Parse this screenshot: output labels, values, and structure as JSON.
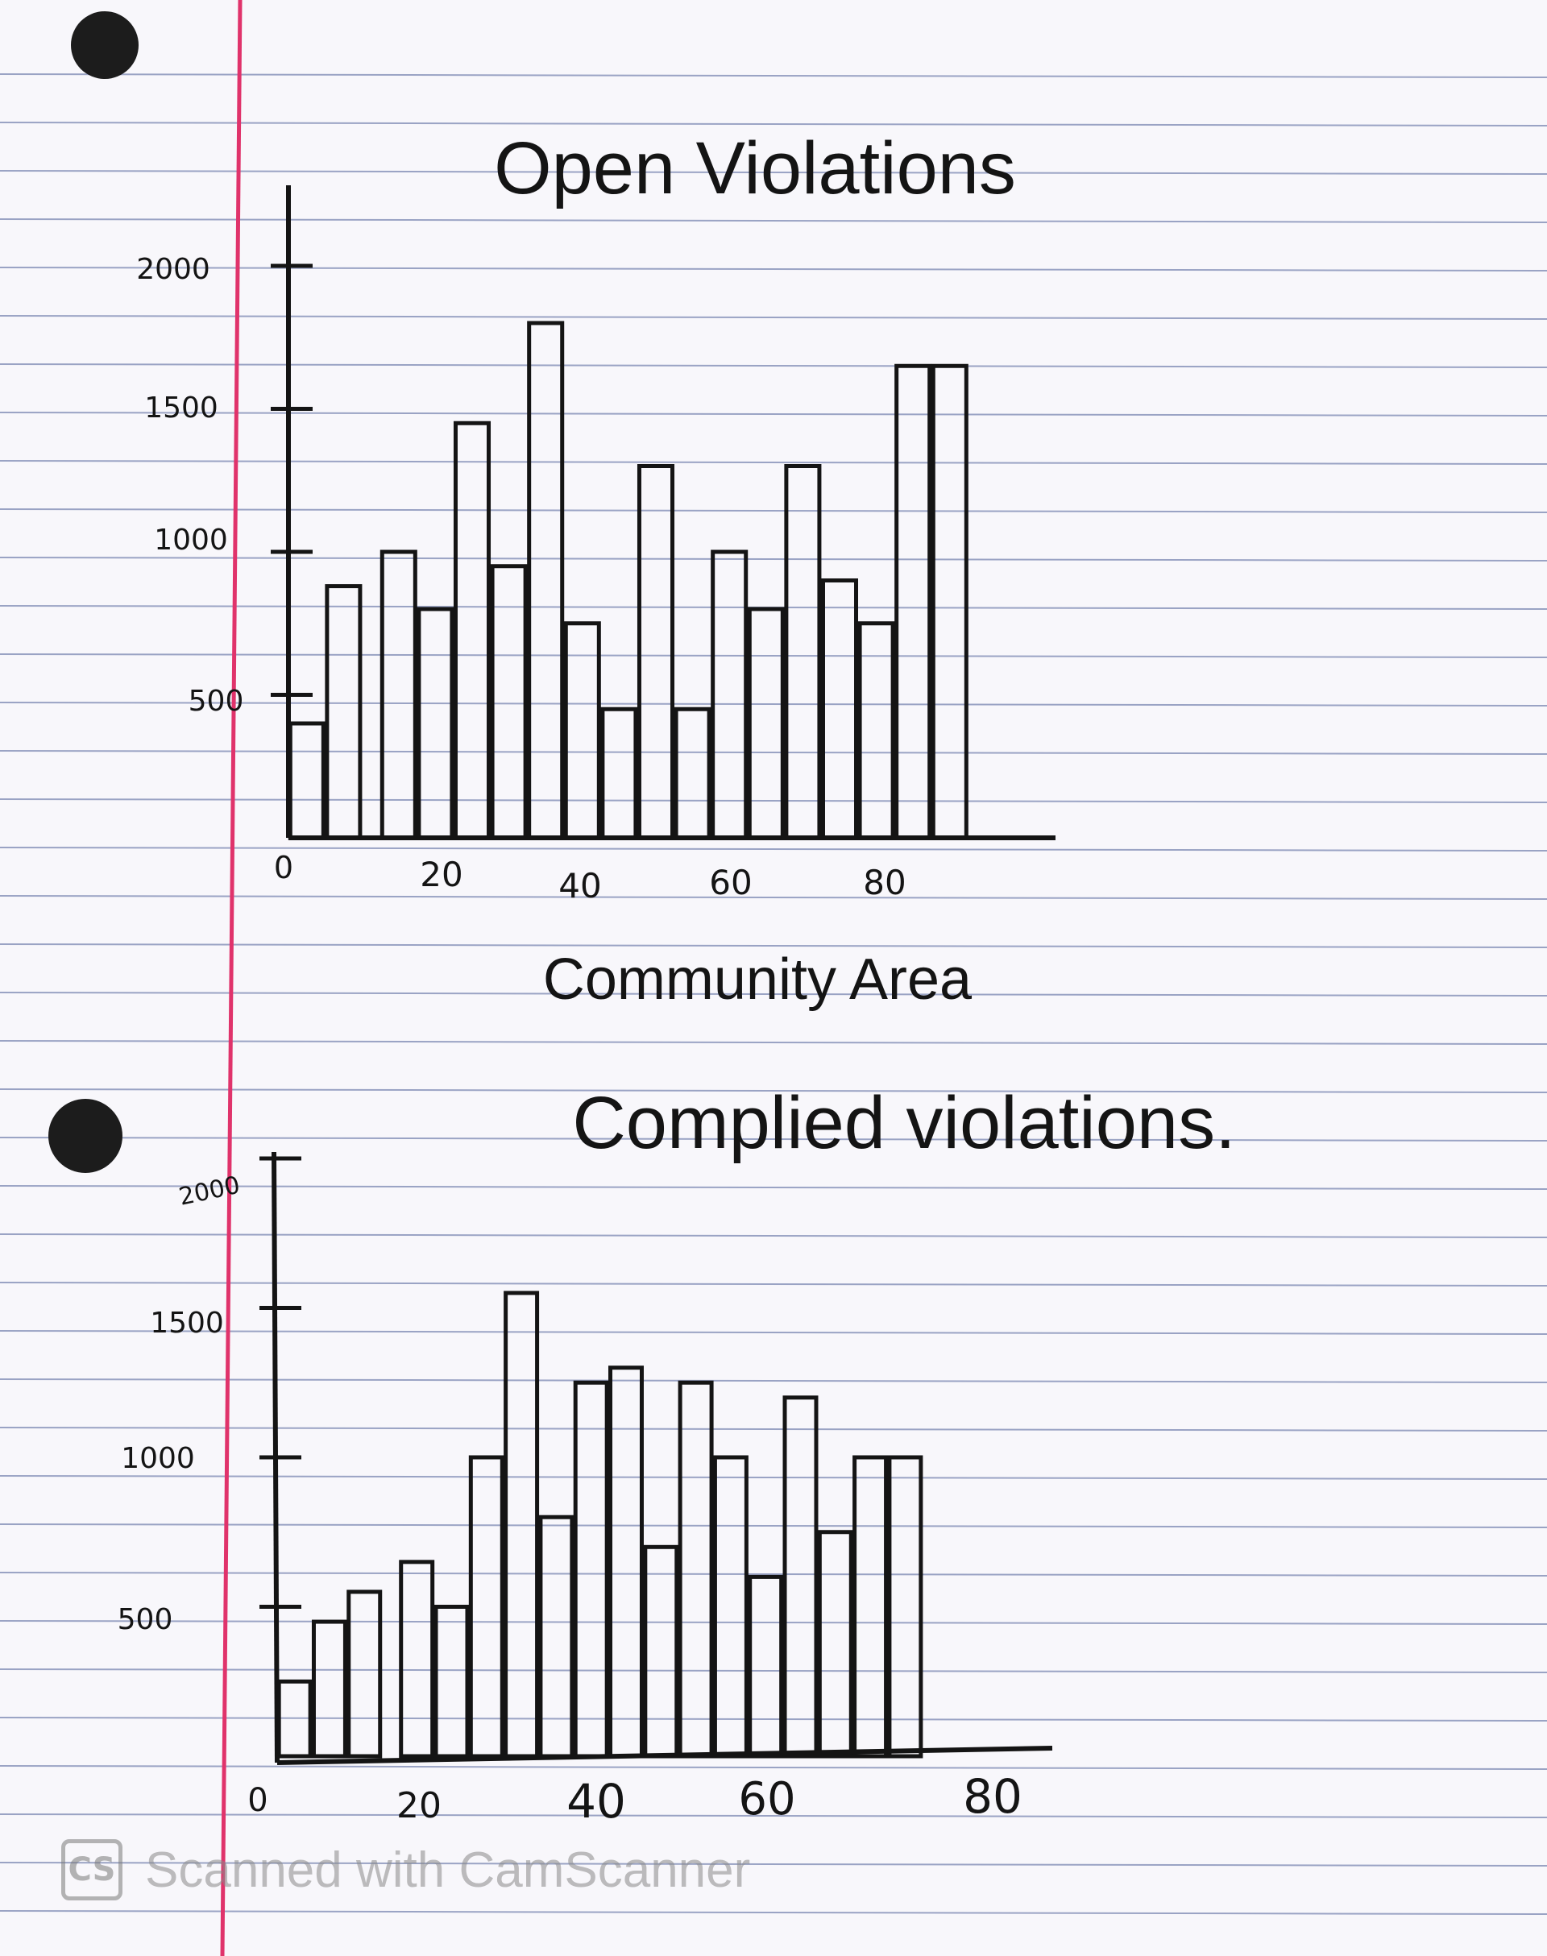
{
  "page": {
    "paper_color": "#f8f7fb",
    "rule_color": "#9aa3c4",
    "margin_color": "#e0336b",
    "ink_color": "#141414"
  },
  "watermark": {
    "logo_text": "CS",
    "text": "Scanned with CamScanner"
  },
  "chart_data": [
    {
      "type": "bar",
      "title": "Open Violations",
      "xlabel": "Community Area",
      "ylabel": "",
      "xlim": [
        0,
        80
      ],
      "ylim": [
        0,
        2000
      ],
      "x_ticks": [
        "0",
        "20",
        "40",
        "60",
        "80"
      ],
      "y_ticks": [
        "2000",
        "1500",
        "1000",
        "500"
      ],
      "x": [
        2,
        6,
        12,
        16,
        20,
        24,
        28,
        32,
        36,
        40,
        44,
        48,
        52,
        56,
        60,
        64,
        68,
        72,
        76
      ],
      "values": [
        400,
        880,
        1000,
        800,
        1450,
        950,
        1800,
        750,
        450,
        1300,
        450,
        1000,
        800,
        1300,
        900,
        750,
        1650,
        1650,
        0
      ]
    },
    {
      "type": "bar",
      "title": "Complied violations.",
      "xlabel": "",
      "ylabel": "",
      "xlim": [
        0,
        80
      ],
      "ylim": [
        0,
        2000
      ],
      "x_ticks": [
        "0",
        "20",
        "40",
        "60",
        "80"
      ],
      "y_ticks": [
        "2000",
        "1500",
        "1000",
        "500"
      ],
      "x": [
        2,
        6,
        10,
        16,
        20,
        24,
        28,
        32,
        36,
        40,
        44,
        48,
        52,
        56,
        60,
        64,
        68,
        72
      ],
      "values": [
        250,
        450,
        550,
        650,
        500,
        1000,
        1550,
        800,
        1250,
        1300,
        700,
        1250,
        1000,
        600,
        1200,
        750,
        1000,
        1000
      ]
    }
  ]
}
